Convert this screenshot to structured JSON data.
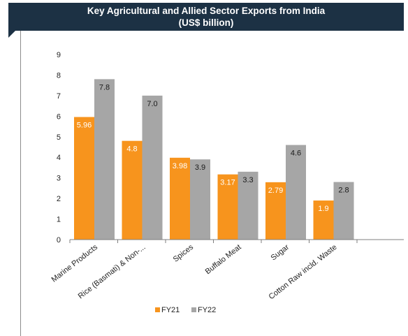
{
  "chart_data": {
    "type": "bar",
    "title": "Key Agricultural and Allied Sector Exports from India",
    "subtitle": "(US$ billion)",
    "categories": [
      "Marine Products",
      "Rice (Basmati) & Non-...",
      "Spices",
      "Buffalo Meat",
      "Sugar",
      "Cotton Raw incld. Waste"
    ],
    "series": [
      {
        "name": "FY21",
        "values": [
          5.96,
          4.8,
          3.98,
          3.17,
          2.79,
          1.9
        ],
        "labels": [
          "5.96",
          "4.8",
          "3.98",
          "3.17",
          "2.79",
          "1.9"
        ],
        "color": "#f7941d"
      },
      {
        "name": "FY22",
        "values": [
          7.8,
          7.0,
          3.9,
          3.3,
          4.6,
          2.8
        ],
        "labels": [
          "7.8",
          "7.0",
          "3.9",
          "3.3",
          "4.6",
          "2.8"
        ],
        "color": "#a6a6a6"
      }
    ],
    "y_ticks": [
      "0",
      "1",
      "2",
      "3",
      "4",
      "5",
      "6",
      "7",
      "8",
      "9"
    ],
    "ylim": [
      0,
      9
    ],
    "grid": false,
    "legend_position": "bottom"
  }
}
